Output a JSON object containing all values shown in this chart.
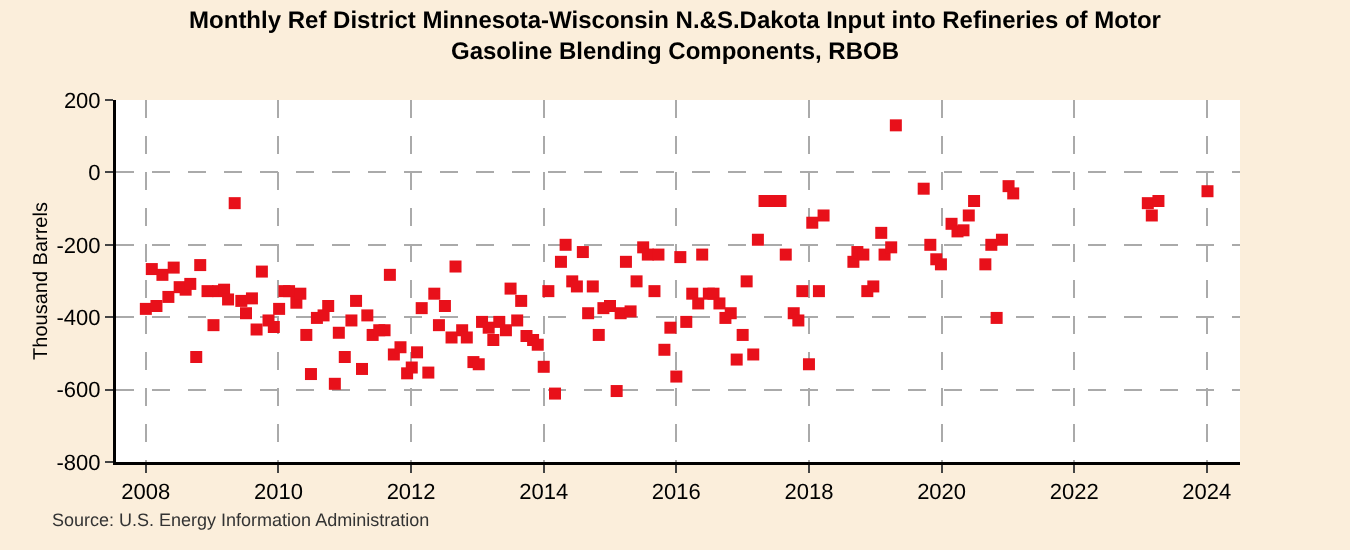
{
  "chart_data": {
    "type": "scatter",
    "title": "Monthly Ref District Minnesota-Wisconsin N.&S.Dakota Input into Refineries of Motor Gasoline Blending Components, RBOB",
    "ylabel": "Thousand Barrels",
    "marker": "square",
    "grid": true,
    "xlim": [
      2007.55,
      2024.5
    ],
    "xticks": [
      2008,
      2010,
      2012,
      2014,
      2016,
      2018,
      2020,
      2022,
      2024
    ],
    "ylim": [
      -800,
      200
    ],
    "yticks": [
      -800,
      -600,
      -400,
      -200,
      0,
      200
    ],
    "annotations": [
      "Source: U.S. Energy Information Administration"
    ],
    "series": [
      {
        "color": "#e8101a",
        "x": [
          2008.0,
          2008.09,
          2008.16,
          2008.25,
          2008.34,
          2008.42,
          2008.51,
          2008.6,
          2008.67,
          2008.76,
          2008.82,
          2008.93,
          2009.02,
          2009.09,
          2009.18,
          2009.24,
          2009.34,
          2009.44,
          2009.51,
          2009.6,
          2009.67,
          2009.75,
          2009.85,
          2009.93,
          2010.01,
          2010.09,
          2010.16,
          2010.27,
          2010.33,
          2010.42,
          2010.49,
          2010.58,
          2010.68,
          2010.75,
          2010.85,
          2010.91,
          2011.0,
          2011.1,
          2011.17,
          2011.26,
          2011.34,
          2011.42,
          2011.52,
          2011.6,
          2011.68,
          2011.74,
          2011.84,
          2011.94,
          2012.01,
          2012.09,
          2012.16,
          2012.26,
          2012.35,
          2012.42,
          2012.51,
          2012.61,
          2012.67,
          2012.77,
          2012.84,
          2012.94,
          2013.02,
          2013.07,
          2013.17,
          2013.24,
          2013.33,
          2013.43,
          2013.5,
          2013.6,
          2013.66,
          2013.74,
          2013.84,
          2013.91,
          2014.0,
          2014.07,
          2014.17,
          2014.26,
          2014.33,
          2014.43,
          2014.5,
          2014.59,
          2014.67,
          2014.74,
          2014.83,
          2014.9,
          2015.0,
          2015.1,
          2015.16,
          2015.24,
          2015.31,
          2015.4,
          2015.5,
          2015.57,
          2015.67,
          2015.73,
          2015.82,
          2015.91,
          2016.0,
          2016.06,
          2016.15,
          2016.24,
          2016.33,
          2016.39,
          2016.49,
          2016.56,
          2016.65,
          2016.74,
          2016.82,
          2016.91,
          2017.0,
          2017.06,
          2017.16,
          2017.23,
          2017.33,
          2017.49,
          2017.57,
          2017.65,
          2017.77,
          2017.84,
          2017.9,
          2018.0,
          2018.05,
          2018.15,
          2018.22,
          2018.67,
          2018.73,
          2018.82,
          2018.88,
          2018.97,
          2019.09,
          2019.14,
          2019.24,
          2019.31,
          2019.73,
          2019.83,
          2019.92,
          2019.99,
          2020.15,
          2020.24,
          2020.33,
          2020.41,
          2020.49,
          2020.66,
          2020.75,
          2020.83,
          2020.91,
          2021.01,
          2021.08,
          2023.11,
          2023.17,
          2023.27,
          2024.01
        ],
        "values": [
          -377,
          -267,
          -369,
          -283,
          -344,
          -263,
          -317,
          -324,
          -308,
          -510,
          -256,
          -328,
          -422,
          -328,
          -324,
          -351,
          -85,
          -355,
          -389,
          -348,
          -434,
          -274,
          -409,
          -427,
          -377,
          -328,
          -328,
          -360,
          -335,
          -449,
          -557,
          -402,
          -395,
          -369,
          -584,
          -443,
          -510,
          -409,
          -355,
          -543,
          -395,
          -449,
          -436,
          -436,
          -283,
          -503,
          -483,
          -555,
          -539,
          -497,
          -375,
          -553,
          -335,
          -422,
          -369,
          -456,
          -260,
          -436,
          -456,
          -524,
          -530,
          -413,
          -429,
          -463,
          -413,
          -436,
          -321,
          -409,
          -355,
          -452,
          -463,
          -476,
          -537,
          -328,
          -611,
          -247,
          -200,
          -301,
          -315,
          -220,
          -389,
          -315,
          -449,
          -375,
          -369,
          -604,
          -389,
          -247,
          -384,
          -301,
          -207,
          -227,
          -328,
          -227,
          -490,
          -429,
          -564,
          -234,
          -413,
          -335,
          -362,
          -227,
          -335,
          -335,
          -362,
          -402,
          -389,
          -517,
          -449,
          -301,
          -503,
          -186,
          -79,
          -79,
          -79,
          -227,
          -389,
          -409,
          -328,
          -530,
          -139,
          -328,
          -119,
          -247,
          -220,
          -227,
          -328,
          -315,
          -167,
          -227,
          -207,
          130,
          -45,
          -200,
          -240,
          -254,
          -142,
          -163,
          -160,
          -119,
          -79,
          -254,
          -200,
          -402,
          -186,
          -38,
          -58,
          -85,
          -119,
          -79,
          -52
        ]
      }
    ]
  }
}
